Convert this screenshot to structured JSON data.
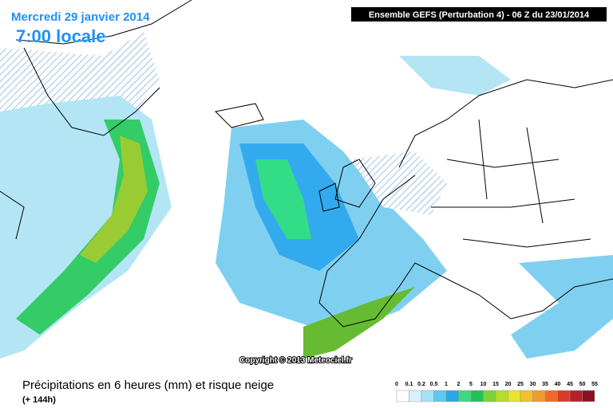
{
  "header": {
    "date": "Mercredi 29 janvier 2014",
    "time": "7:00 locale",
    "run": "Ensemble GEFS (Perturbation 4)  -  06 Z du 23/01/2014"
  },
  "copyright": "Copyright © 2013 Meteociel.fr",
  "legend": {
    "title": "Précipitations en 6 heures (mm) et risque neige",
    "subtitle": "(+ 144h)",
    "ticks": [
      "0",
      "0.1",
      "0.2",
      "0.5",
      "1",
      "2",
      "5",
      "10",
      "15",
      "20",
      "25",
      "30",
      "35",
      "40",
      "45",
      "50",
      "55"
    ]
  }
}
